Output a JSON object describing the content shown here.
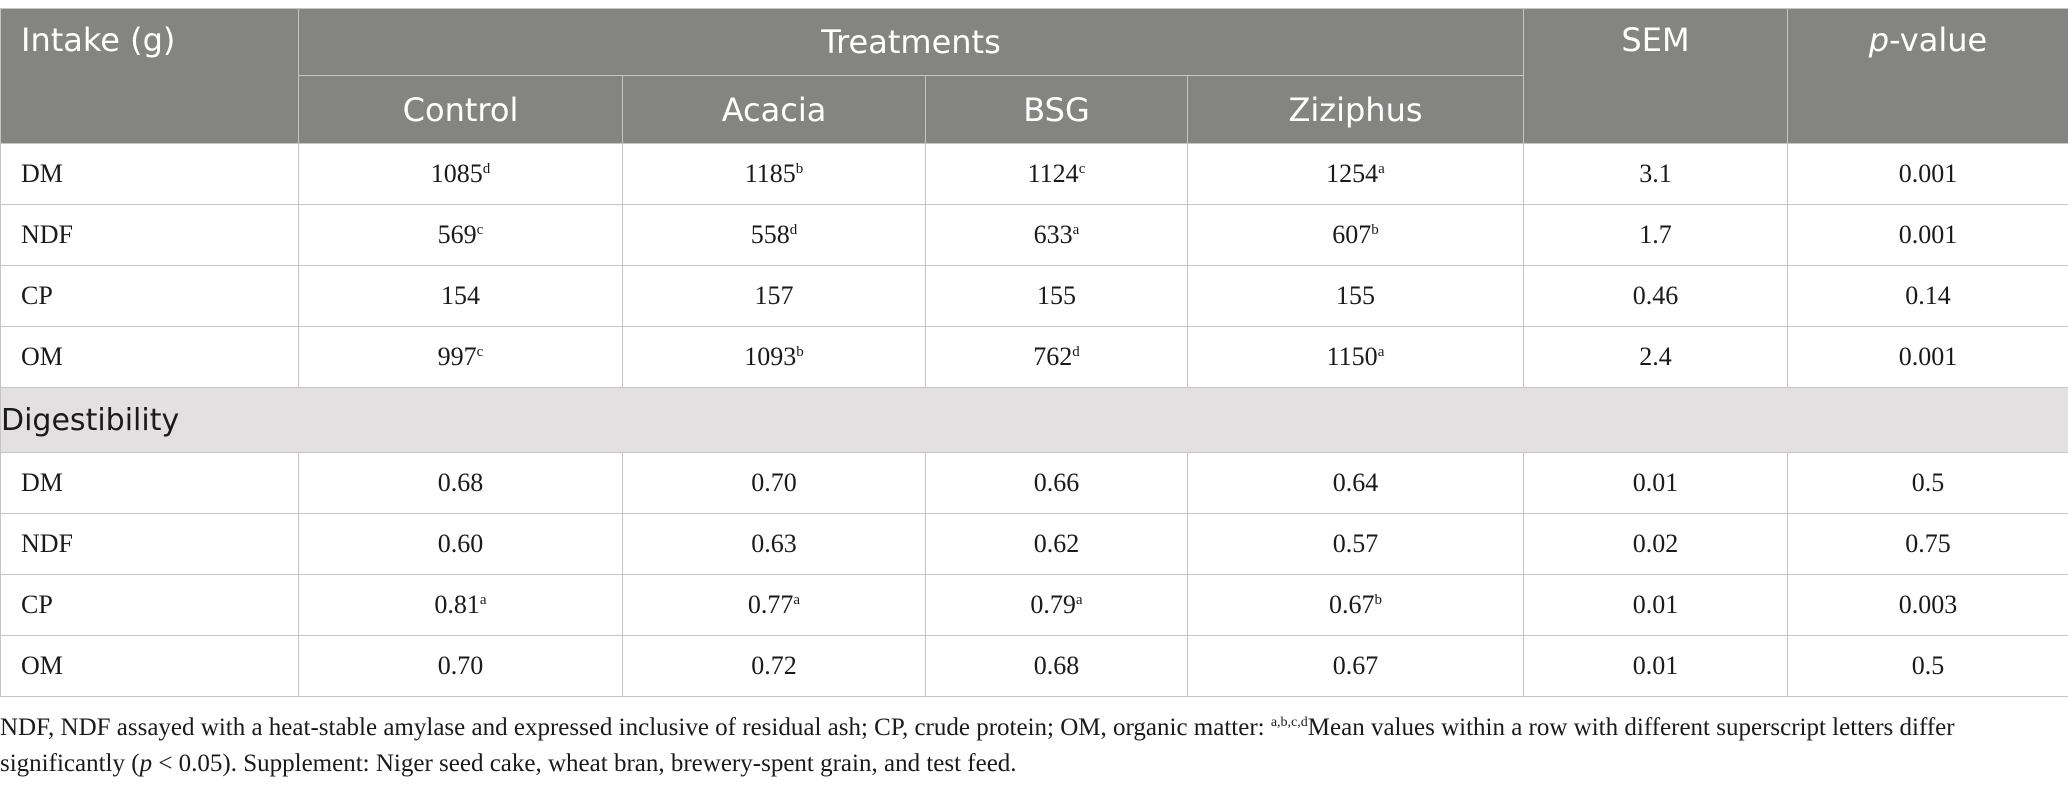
{
  "table": {
    "header": {
      "row_label": "Intake (g)",
      "group": "Treatments",
      "treatments": [
        "Control",
        "Acacia",
        "BSG",
        "Ziziphus"
      ],
      "sem": "SEM",
      "pvalue_italic": "p",
      "pvalue_rest": "-value"
    },
    "intake_rows": [
      {
        "label": "DM",
        "cells": [
          {
            "v": "1085",
            "s": "d"
          },
          {
            "v": "1185",
            "s": "b"
          },
          {
            "v": "1124",
            "s": "c"
          },
          {
            "v": "1254",
            "s": "a"
          }
        ],
        "sem": "3.1",
        "p": "0.001"
      },
      {
        "label": "NDF",
        "cells": [
          {
            "v": "569",
            "s": "c"
          },
          {
            "v": "558",
            "s": "d"
          },
          {
            "v": "633",
            "s": "a"
          },
          {
            "v": "607",
            "s": "b"
          }
        ],
        "sem": "1.7",
        "p": "0.001"
      },
      {
        "label": "CP",
        "cells": [
          {
            "v": "154",
            "s": ""
          },
          {
            "v": "157",
            "s": ""
          },
          {
            "v": "155",
            "s": ""
          },
          {
            "v": "155",
            "s": ""
          }
        ],
        "sem": "0.46",
        "p": "0.14"
      },
      {
        "label": "OM",
        "cells": [
          {
            "v": "997",
            "s": "c"
          },
          {
            "v": "1093",
            "s": "b"
          },
          {
            "v": "762",
            "s": "d"
          },
          {
            "v": "1150",
            "s": "a"
          }
        ],
        "sem": "2.4",
        "p": "0.001"
      }
    ],
    "section_label": "Digestibility",
    "digestibility_rows": [
      {
        "label": "DM",
        "cells": [
          {
            "v": "0.68",
            "s": ""
          },
          {
            "v": "0.70",
            "s": ""
          },
          {
            "v": "0.66",
            "s": ""
          },
          {
            "v": "0.64",
            "s": ""
          }
        ],
        "sem": "0.01",
        "p": "0.5"
      },
      {
        "label": "NDF",
        "cells": [
          {
            "v": "0.60",
            "s": ""
          },
          {
            "v": "0.63",
            "s": ""
          },
          {
            "v": "0.62",
            "s": ""
          },
          {
            "v": "0.57",
            "s": ""
          }
        ],
        "sem": "0.02",
        "p": "0.75"
      },
      {
        "label": "CP",
        "cells": [
          {
            "v": "0.81",
            "s": "a"
          },
          {
            "v": "0.77",
            "s": "a"
          },
          {
            "v": "0.79",
            "s": "a"
          },
          {
            "v": "0.67",
            "s": "b"
          }
        ],
        "sem": "0.01",
        "p": "0.003"
      },
      {
        "label": "OM",
        "cells": [
          {
            "v": "0.70",
            "s": ""
          },
          {
            "v": "0.72",
            "s": ""
          },
          {
            "v": "0.68",
            "s": ""
          },
          {
            "v": "0.67",
            "s": ""
          }
        ],
        "sem": "0.01",
        "p": "0.5"
      }
    ]
  },
  "footnote": {
    "part1": "NDF, NDF assayed with a heat-stable amylase and expressed inclusive of residual ash; CP, crude protein; OM, organic matter: ",
    "sup": "a,b,c,d",
    "part2": "Mean values within a row with different superscript letters differ significantly (",
    "p_italic": "p",
    "part3": " < 0.05). Supplement: Niger seed cake, wheat bran, brewery-spent grain, and test feed."
  }
}
